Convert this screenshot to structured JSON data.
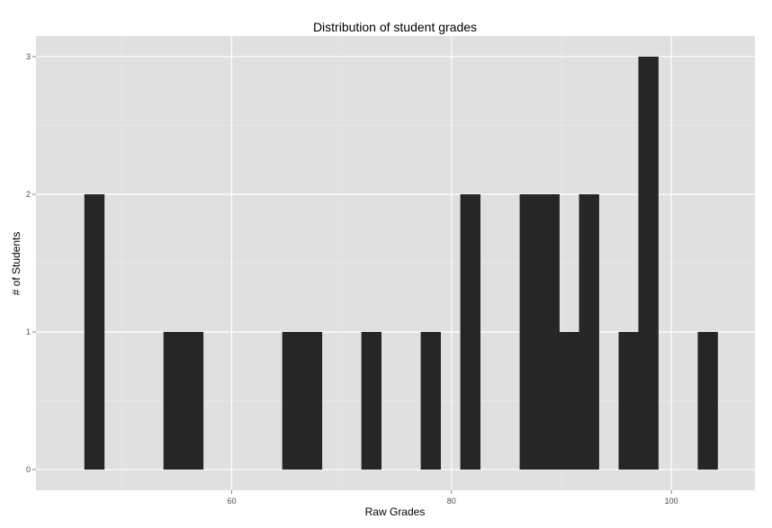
{
  "chart_data": {
    "type": "bar",
    "title": "Distribution of student grades",
    "xlabel": "Raw Grades",
    "ylabel": "# of Students",
    "xlim": [
      42.2,
      107.6
    ],
    "ylim": [
      -0.15,
      3.15
    ],
    "x_ticks": [
      {
        "value": 60,
        "label": "60"
      },
      {
        "value": 80,
        "label": "80"
      },
      {
        "value": 100,
        "label": "100"
      }
    ],
    "y_ticks": [
      {
        "value": 0,
        "label": "0"
      },
      {
        "value": 1,
        "label": "1"
      },
      {
        "value": 2,
        "label": "2"
      },
      {
        "value": 3,
        "label": "3"
      }
    ],
    "bin_width": 1.8,
    "bins": [
      {
        "start": 46.6,
        "count": 2
      },
      {
        "start": 53.8,
        "count": 1
      },
      {
        "start": 55.6,
        "count": 1
      },
      {
        "start": 64.6,
        "count": 1
      },
      {
        "start": 66.4,
        "count": 1
      },
      {
        "start": 71.8,
        "count": 1
      },
      {
        "start": 77.2,
        "count": 1
      },
      {
        "start": 80.8,
        "count": 2
      },
      {
        "start": 86.2,
        "count": 2
      },
      {
        "start": 88.0,
        "count": 2
      },
      {
        "start": 89.8,
        "count": 1
      },
      {
        "start": 91.6,
        "count": 2
      },
      {
        "start": 95.2,
        "count": 1
      },
      {
        "start": 97.0,
        "count": 3
      },
      {
        "start": 102.4,
        "count": 1
      }
    ],
    "grid": true,
    "bar_color": "#262626",
    "panel_color": "#e0e0e0",
    "gridline_color": "#ffffff"
  }
}
